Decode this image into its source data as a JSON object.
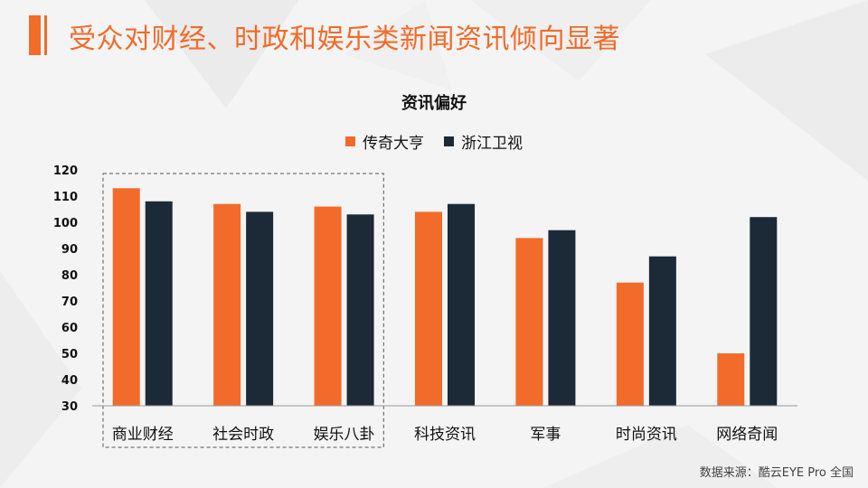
{
  "slide": {
    "title": "受众对财经、时政和娱乐类新闻资讯倾向显著",
    "source": "数据来源：酷云EYE Pro 全国"
  },
  "colors": {
    "accent": "#f26b2a",
    "series_1": "#f26b2a",
    "series_2": "#1c2a37",
    "highlight_box": "#555555"
  },
  "chart_data": {
    "type": "bar",
    "title": "资讯偏好",
    "categories": [
      "商业财经",
      "社会时政",
      "娱乐八卦",
      "科技资讯",
      "军事",
      "时尚资讯",
      "网络奇闻"
    ],
    "series": [
      {
        "name": "传奇大亨",
        "values": [
          113,
          107,
          106,
          104,
          94,
          77,
          50
        ]
      },
      {
        "name": "浙江卫视",
        "values": [
          108,
          104,
          103,
          107,
          97,
          87,
          102
        ]
      }
    ],
    "ylim": [
      30,
      120
    ],
    "yticks": [
      30,
      40,
      50,
      60,
      70,
      80,
      90,
      100,
      110,
      120
    ],
    "xlabel": "",
    "ylabel": "",
    "grid": false,
    "legend_position": "top",
    "highlighted_categories": [
      "商业财经",
      "社会时政",
      "娱乐八卦"
    ]
  }
}
